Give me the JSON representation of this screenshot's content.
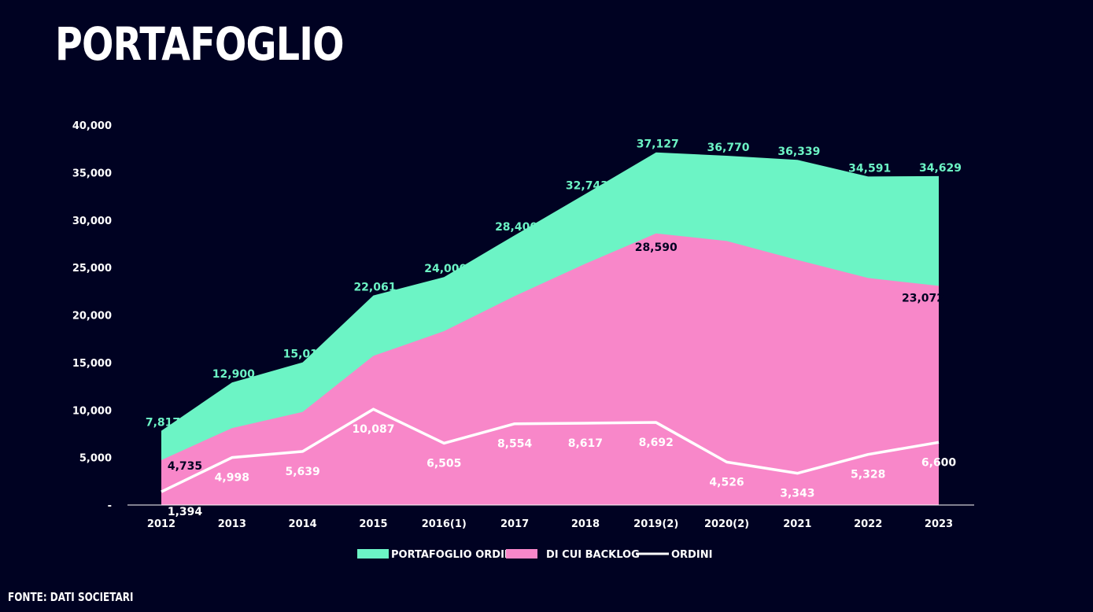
{
  "title": "PORTAFOGLIO",
  "source": "FONTE: DATI SOCIETARI",
  "colors": {
    "background": "#000222",
    "portafoglio": "#6cf4c5",
    "backlog": "#f887c9",
    "ordini": "#ffffff",
    "text_dark": "#000222"
  },
  "chart_data": {
    "type": "area",
    "categories": [
      "2012",
      "2013",
      "2014",
      "2015",
      "2016(1)",
      "2017",
      "2018",
      "2019(2)",
      "2020(2)",
      "2021",
      "2022",
      "2023"
    ],
    "series": [
      {
        "name": "PORTAFOGLIO ORDINI",
        "type": "area",
        "values": [
          7817,
          12900,
          15016,
          22061,
          24000,
          28400,
          32743,
          37127,
          36770,
          36339,
          34591,
          34629
        ],
        "labels": [
          "7,817",
          "12,900",
          "15,016",
          "22,061",
          "24,000",
          "28,400",
          "32,743",
          "37,127",
          "36,770",
          "36,339",
          "34,591",
          "34,629"
        ]
      },
      {
        "name": "DI CUI BACKLOG",
        "type": "area",
        "values": [
          4735,
          8100,
          9800,
          15700,
          18300,
          22000,
          25400,
          28590,
          27800,
          25800,
          23900,
          23072
        ],
        "labels": [
          "4,735",
          "",
          "",
          "",
          "",
          "",
          "",
          "28,590",
          "",
          "",
          "",
          "23,072"
        ]
      },
      {
        "name": "ORDINI",
        "type": "line",
        "values": [
          1394,
          4998,
          5639,
          10087,
          6505,
          8554,
          8617,
          8692,
          4526,
          3343,
          5328,
          6600
        ],
        "labels": [
          "1,394",
          "4,998",
          "5,639",
          "10,087",
          "6,505",
          "8,554",
          "8,617",
          "8,692",
          "4,526",
          "3,343",
          "5,328",
          "6,600"
        ]
      }
    ],
    "ylim": [
      0,
      40000
    ],
    "yticks": [
      0,
      5000,
      10000,
      15000,
      20000,
      25000,
      30000,
      35000,
      40000
    ],
    "ytick_labels": [
      "-",
      "5,000",
      "10,000",
      "15,000",
      "20,000",
      "25,000",
      "30,000",
      "35,000",
      "40,000"
    ],
    "legend": "bottom-center",
    "grid": false
  }
}
